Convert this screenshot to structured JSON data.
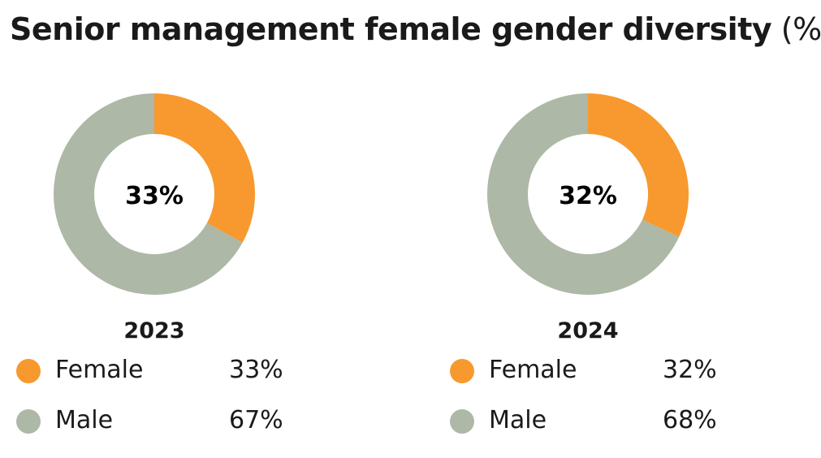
{
  "title": {
    "main": "Senior management female gender diversity",
    "unit": "(%)"
  },
  "colors": {
    "female": "#F7992E",
    "male": "#ADB8A6"
  },
  "chart_data": [
    {
      "type": "pie",
      "title": "2023",
      "center_label": "33%",
      "categories": [
        "Female",
        "Male"
      ],
      "values": [
        33,
        67
      ],
      "labels": [
        "33%",
        "67%"
      ]
    },
    {
      "type": "pie",
      "title": "2024",
      "center_label": "32%",
      "categories": [
        "Female",
        "Male"
      ],
      "values": [
        32,
        68
      ],
      "labels": [
        "32%",
        "68%"
      ]
    }
  ]
}
